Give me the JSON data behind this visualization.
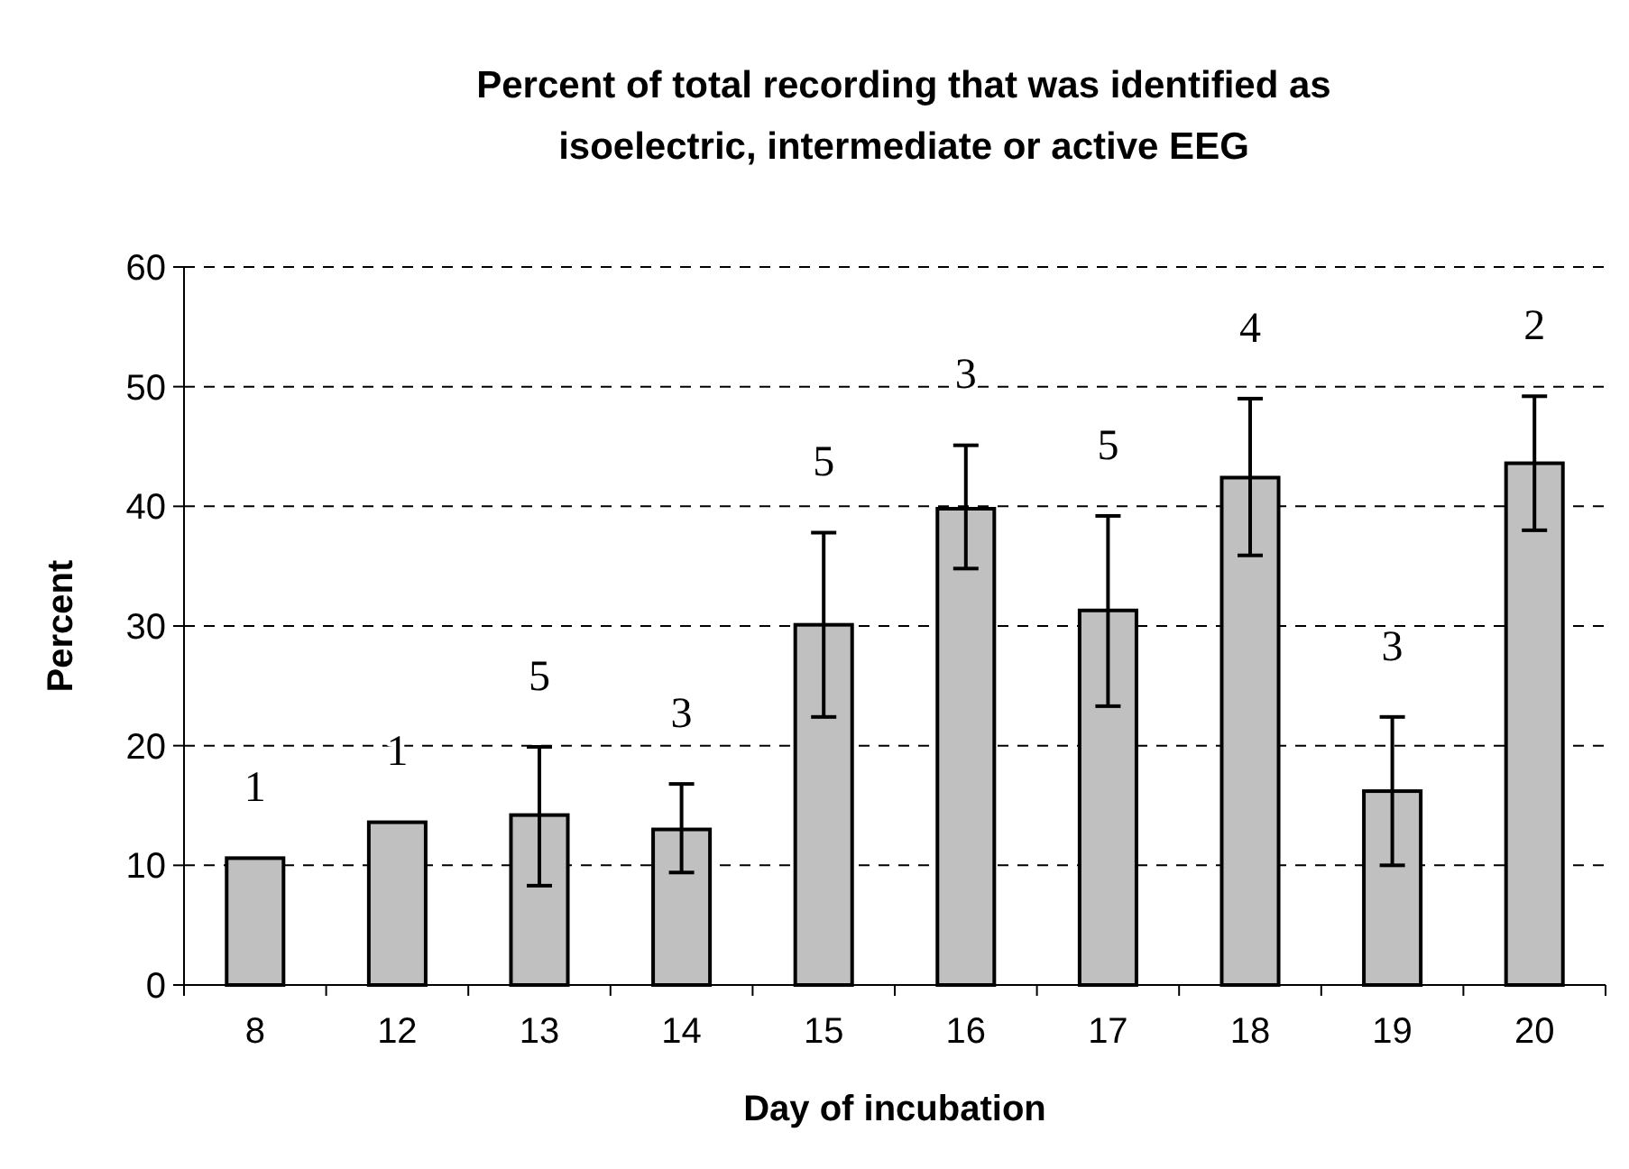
{
  "chart_data": {
    "type": "bar",
    "title": "Percent of total recording that was identified as\nisoelectric, intermediate or active EEG",
    "xlabel": "Day of incubation",
    "ylabel": "Percent",
    "categories": [
      "8",
      "12",
      "13",
      "14",
      "15",
      "16",
      "17",
      "18",
      "19",
      "20"
    ],
    "values": [
      10.6,
      13.6,
      14.2,
      13.0,
      30.1,
      39.8,
      31.3,
      42.4,
      16.2,
      43.6
    ],
    "errors": [
      null,
      null,
      [
        8.3,
        19.9
      ],
      [
        9.4,
        16.8
      ],
      [
        22.4,
        37.8
      ],
      [
        34.8,
        45.1
      ],
      [
        23.3,
        39.2
      ],
      [
        35.9,
        49.0
      ],
      [
        10.0,
        22.4
      ],
      [
        38.0,
        49.2
      ]
    ],
    "color": "#c0c0c0",
    "ylim": [
      0,
      60
    ],
    "yticks": [
      0,
      10,
      20,
      30,
      40,
      50,
      60
    ],
    "grid": "y",
    "annotations": [
      "1",
      "1",
      "5",
      "3",
      "5",
      "3",
      "5",
      "4",
      "3",
      "2"
    ]
  }
}
